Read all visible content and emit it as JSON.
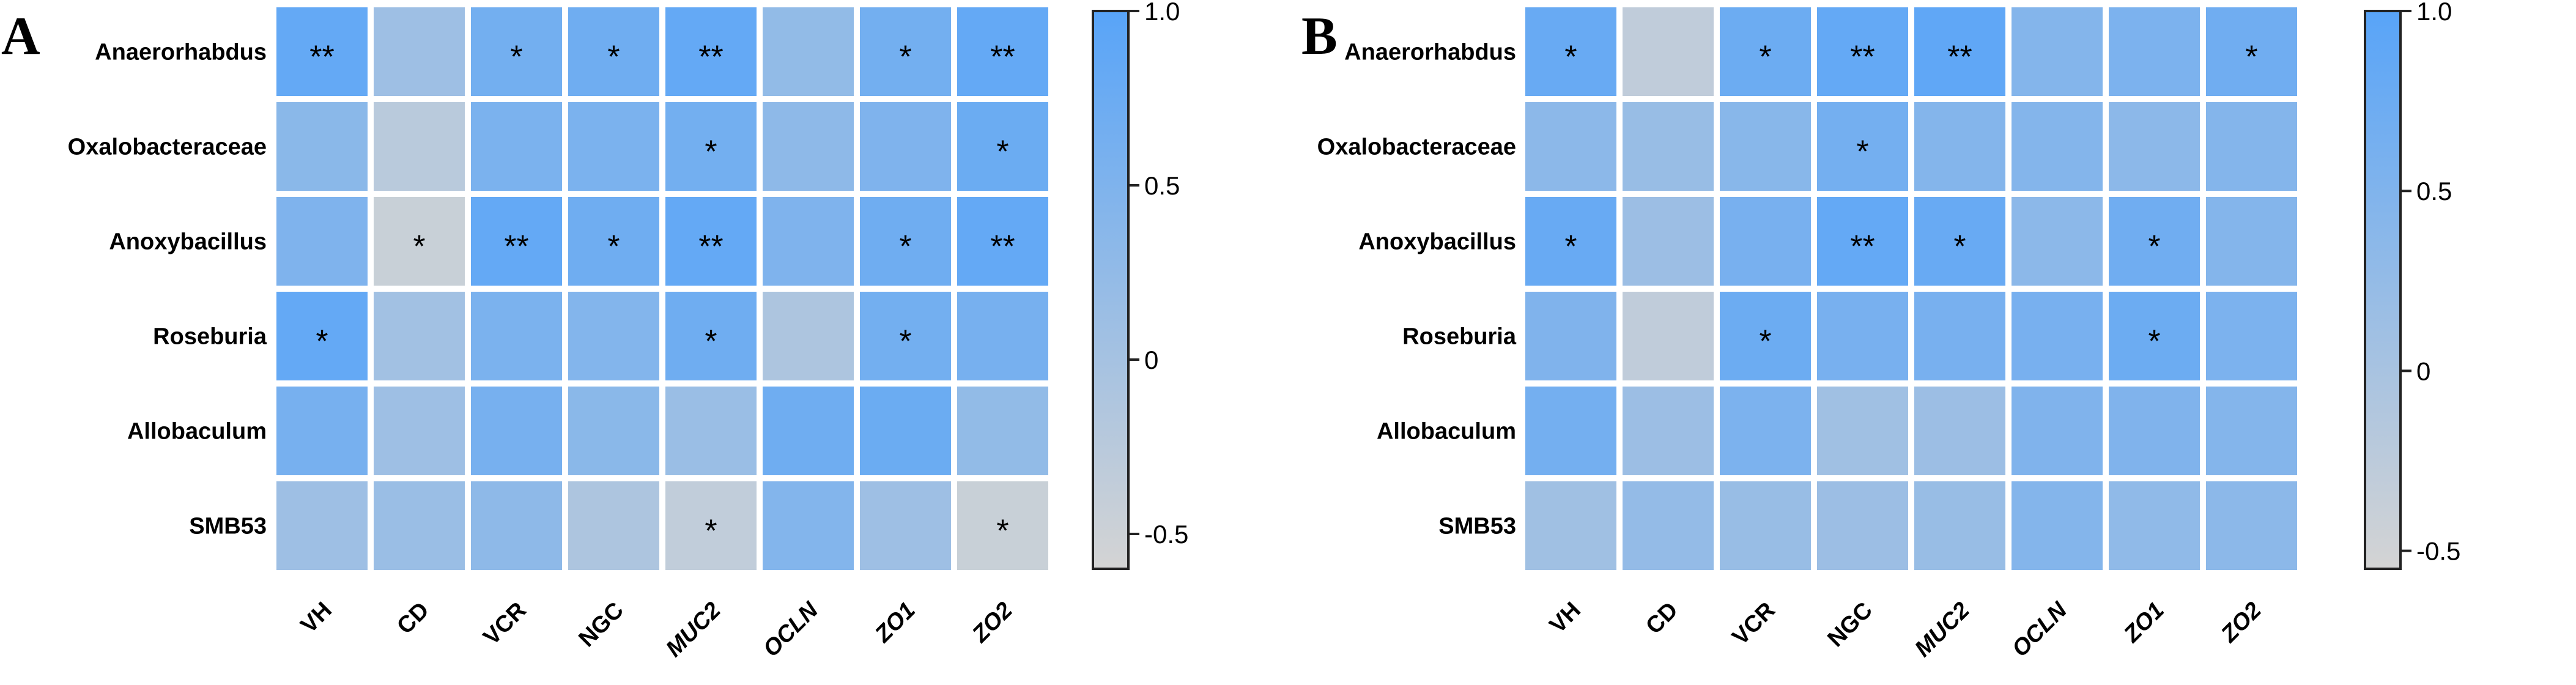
{
  "chart_data": [
    {
      "type": "heatmap",
      "panel_label": "A",
      "rows": [
        "Anaerorhabdus",
        "Oxalobacteraceae",
        "Anoxybacillus",
        "Roseburia",
        "Allobaculum",
        "SMB53"
      ],
      "columns": [
        "VH",
        "CD",
        "VCR",
        "NGC",
        "MUC2",
        "OCLN",
        "ZO1",
        "ZO2"
      ],
      "italic_columns": [
        "MUC2",
        "OCLN",
        "ZO1",
        "ZO2"
      ],
      "values": [
        [
          0.85,
          0.1,
          0.65,
          0.7,
          0.85,
          0.25,
          0.65,
          0.85
        ],
        [
          0.35,
          -0.25,
          0.55,
          0.55,
          0.65,
          0.3,
          0.5,
          0.75
        ],
        [
          0.5,
          -0.45,
          0.85,
          0.7,
          0.85,
          0.5,
          0.7,
          0.85
        ],
        [
          0.85,
          0.05,
          0.55,
          0.45,
          0.7,
          -0.1,
          0.65,
          0.6
        ],
        [
          0.6,
          0.1,
          0.6,
          0.35,
          0.15,
          0.7,
          0.75,
          0.25
        ],
        [
          0.1,
          0.15,
          0.3,
          -0.1,
          -0.35,
          0.45,
          0.1,
          -0.45
        ]
      ],
      "significance": [
        [
          "**",
          "",
          "*",
          "*",
          "**",
          "",
          "*",
          "**"
        ],
        [
          "",
          "",
          "",
          "",
          "*",
          "",
          "",
          "*"
        ],
        [
          "",
          "*",
          "**",
          "*",
          "**",
          "",
          "*",
          "**"
        ],
        [
          "*",
          "",
          "",
          "",
          "*",
          "",
          "*",
          ""
        ],
        [
          "",
          "",
          "",
          "",
          "",
          "",
          "",
          ""
        ],
        [
          "",
          "",
          "",
          "",
          "*",
          "",
          "",
          "*"
        ]
      ],
      "colorbar": {
        "min": -0.6,
        "max": 1.0,
        "ticks": [
          1.0,
          0.5,
          0,
          -0.5
        ],
        "tick_labels": [
          "1.0",
          "0.5",
          "0",
          "-0.5"
        ]
      },
      "colors": {
        "low": "#d4d4d4",
        "high": "#58a4f8"
      }
    },
    {
      "type": "heatmap",
      "panel_label": "B",
      "rows": [
        "Anaerorhabdus",
        "Oxalobacteraceae",
        "Anoxybacillus",
        "Roseburia",
        "Allobaculum",
        "SMB53"
      ],
      "columns": [
        "VH",
        "CD",
        "VCR",
        "NGC",
        "MUC2",
        "OCLN",
        "ZO1",
        "ZO2"
      ],
      "italic_columns": [
        "MUC2",
        "OCLN",
        "ZO1",
        "ZO2"
      ],
      "values": [
        [
          0.8,
          -0.3,
          0.75,
          0.85,
          0.9,
          0.45,
          0.55,
          0.7
        ],
        [
          0.35,
          0.2,
          0.4,
          0.65,
          0.45,
          0.45,
          0.35,
          0.45
        ],
        [
          0.8,
          0.15,
          0.6,
          0.85,
          0.8,
          0.35,
          0.7,
          0.45
        ],
        [
          0.5,
          -0.3,
          0.75,
          0.6,
          0.6,
          0.6,
          0.75,
          0.55
        ],
        [
          0.65,
          0.15,
          0.55,
          0.1,
          0.15,
          0.5,
          0.5,
          0.45
        ],
        [
          0.1,
          0.25,
          0.2,
          0.15,
          0.2,
          0.45,
          0.3,
          0.35
        ]
      ],
      "significance": [
        [
          "*",
          "",
          "*",
          "**",
          "**",
          "",
          "",
          "*"
        ],
        [
          "",
          "",
          "",
          "*",
          "",
          "",
          "",
          ""
        ],
        [
          "*",
          "",
          "",
          "**",
          "*",
          "",
          "*",
          ""
        ],
        [
          "",
          "",
          "*",
          "",
          "",
          "",
          "*",
          ""
        ],
        [
          "",
          "",
          "",
          "",
          "",
          "",
          "",
          ""
        ],
        [
          "",
          "",
          "",
          "",
          "",
          "",
          "",
          ""
        ]
      ],
      "colorbar": {
        "min": -0.55,
        "max": 1.0,
        "ticks": [
          1.0,
          0.5,
          0,
          -0.5
        ],
        "tick_labels": [
          "1.0",
          "0.5",
          "0",
          "-0.5"
        ]
      },
      "colors": {
        "low": "#d4d4d4",
        "high": "#58a4f8"
      }
    }
  ]
}
